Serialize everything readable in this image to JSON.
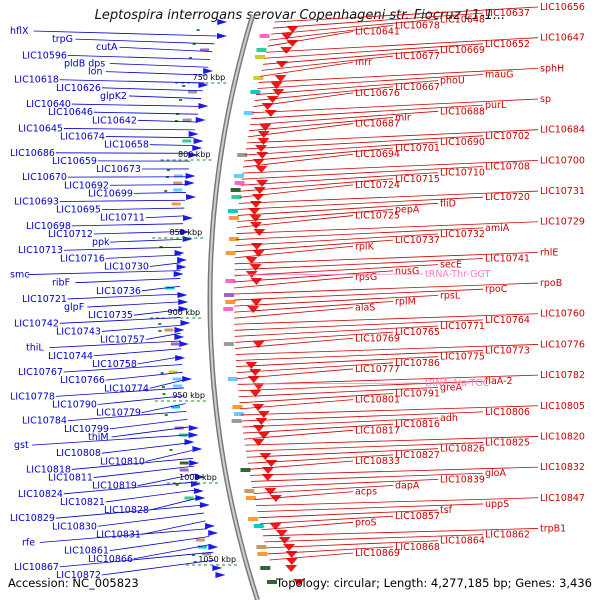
{
  "title": "Leptospira interrogans serovar Copenhageni str. Fiocruz L1-1...",
  "footer": {
    "accession": "Accession: NC_005823",
    "summary": "Topology: circular; Length: 4,277,185 bp; Genes: 3,436"
  },
  "colors": {
    "left_label": "#0000cc",
    "right_label": "#cc0000",
    "rna_label": "#ff80c0",
    "backbone": "#999999",
    "kbp_tick": "#1a8a1a"
  },
  "kbp_ticks": [
    "750 kbp",
    "800 kbp",
    "850 kbp",
    "900 kbp",
    "950 kbp",
    "1000 kbp",
    "1050 kbp"
  ],
  "left_labels": [
    "hflX",
    "trpG",
    "cutA",
    "LIC10596",
    "pldB dps",
    "lon",
    "LIC10618",
    "LIC10626",
    "glpK2",
    "LIC10640",
    "LIC10646",
    "LIC10642",
    "LIC10645",
    "LIC10674",
    "LIC10658",
    "LIC10686",
    "LIC10659",
    "LIC10673",
    "LIC10670",
    "LIC10692",
    "LIC10699",
    "LIC10693",
    "LIC10695",
    "LIC10711",
    "LIC10698",
    "LIC10712",
    "ppk",
    "LIC10713",
    "LIC10716",
    "LIC10730",
    "smc",
    "ribF",
    "LIC10736",
    "LIC10721",
    "glpF",
    "LIC10735",
    "LIC10742",
    "LIC10743",
    "LIC10757",
    "thiL",
    "LIC10744",
    "LIC10758",
    "LIC10767",
    "LIC10766",
    "LIC10774",
    "LIC10778",
    "LIC10790",
    "LIC10779",
    "LIC10784",
    "LIC10799",
    "thiM",
    "gst",
    "LIC10808",
    "LIC10810",
    "LIC10818",
    "LIC10811",
    "LIC10819",
    "LIC10824",
    "LIC10821",
    "LIC10828",
    "LIC10829",
    "LIC10830",
    "LIC10831",
    "rfe",
    "LIC10861",
    "LIC10866",
    "LIC10867",
    "LIC10872"
  ],
  "right_labels": [
    "LIC10656",
    "LIC10637",
    "LIC10648",
    "LIC10678",
    "LIC10641",
    "LIC10647",
    "LIC10652",
    "LIC10669",
    "LIC10677",
    "mrr",
    "sphH",
    "mauG",
    "phoU",
    "LIC10667",
    "LIC10676",
    "sp",
    "purL",
    "LIC10688",
    "mlr",
    "LIC10687",
    "LIC10684",
    "LIC10702",
    "LIC10690",
    "LIC10701",
    "LIC10694",
    "LIC10700",
    "LIC10708",
    "LIC10710",
    "LIC10715",
    "LIC10724",
    "LIC10731",
    "LIC10720",
    "fliD",
    "pepA",
    "LIC10725",
    "LIC10729",
    "amiA",
    "LIC10732",
    "LIC10737",
    "rplK",
    "rhlE",
    "LIC10741",
    "secE",
    "nusG",
    "rpsG",
    "rpoB",
    "rpoC",
    "rpsL",
    "rplM",
    "alaS",
    "LIC10760",
    "LIC10764",
    "LIC10771",
    "LIC10765",
    "LIC10769",
    "LIC10776",
    "LIC10773",
    "LIC10775",
    "LIC10786",
    "LIC10777",
    "LIC10782",
    "flaA-2",
    "greA",
    "LIC10791",
    "LIC10801",
    "LIC10805",
    "LIC10806",
    "adh",
    "LIC10816",
    "LIC10817",
    "LIC10820",
    "LIC10825",
    "LIC10826",
    "LIC10827",
    "LIC10833",
    "LIC10832",
    "gloA",
    "LIC10839",
    "dapA",
    "acps",
    "LIC10847",
    "uppS",
    "tsf",
    "LIC10857",
    "proS",
    "trpB1",
    "LIC10862",
    "LIC10864",
    "LIC10868",
    "LIC10869"
  ],
  "rna_labels": [
    "tRNA-Thr-GGT",
    "tRNA-Ala-TGC"
  ]
}
